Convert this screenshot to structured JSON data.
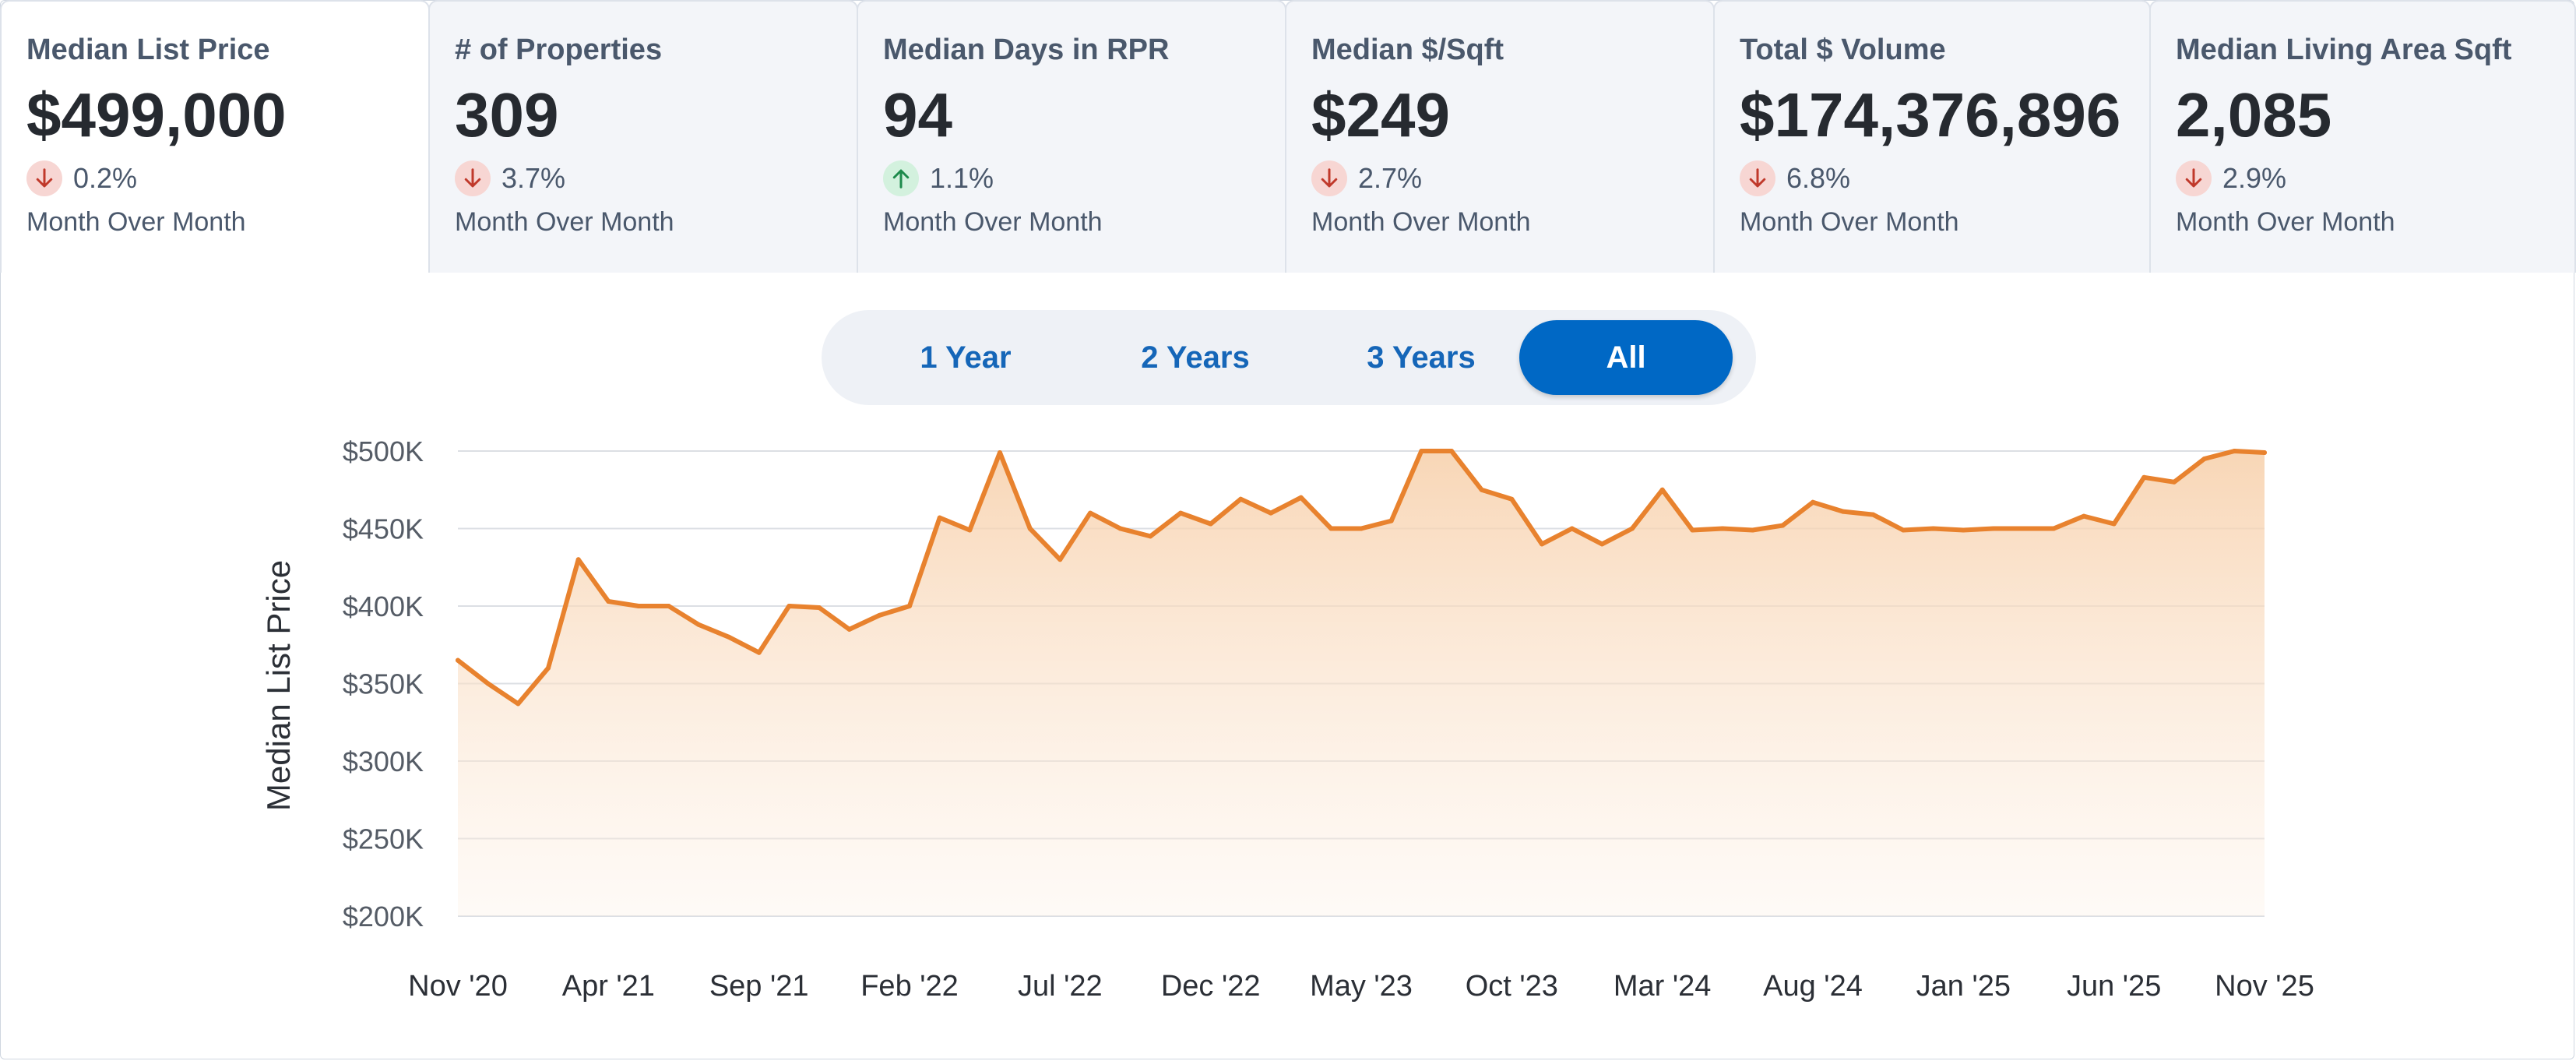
{
  "metrics": [
    {
      "title": "Median List Price",
      "value": "$499,000",
      "direction": "down",
      "change": "0.2%",
      "period": "Month Over Month",
      "active": true
    },
    {
      "title": "# of Properties",
      "value": "309",
      "direction": "down",
      "change": "3.7%",
      "period": "Month Over Month",
      "active": false
    },
    {
      "title": "Median Days in RPR",
      "value": "94",
      "direction": "up",
      "change": "1.1%",
      "period": "Month Over Month",
      "active": false
    },
    {
      "title": "Median $/Sqft",
      "value": "$249",
      "direction": "down",
      "change": "2.7%",
      "period": "Month Over Month",
      "active": false
    },
    {
      "title": "Total $ Volume",
      "value": "$174,376,896",
      "direction": "down",
      "change": "6.8%",
      "period": "Month Over Month",
      "active": false
    },
    {
      "title": "Median Living Area Sqft",
      "value": "2,085",
      "direction": "down",
      "change": "2.9%",
      "period": "Month Over Month",
      "active": false
    }
  ],
  "range_selector": {
    "options": [
      "1 Year",
      "2 Years",
      "3 Years",
      "All"
    ],
    "selected": "All"
  },
  "colors": {
    "line": "#e8822e",
    "fill": "#f8d2b0",
    "accent": "#0068c5",
    "down_arrow": "#c0392b",
    "up_arrow": "#1e8a4c"
  },
  "chart_data": {
    "type": "area",
    "title": "",
    "ylabel": "Median List Price",
    "xlabel": "",
    "ylim": [
      200000,
      500000
    ],
    "y_ticks": [
      200000,
      250000,
      300000,
      350000,
      400000,
      450000,
      500000
    ],
    "y_tick_labels": [
      "$200K",
      "$250K",
      "$300K",
      "$350K",
      "$400K",
      "$450K",
      "$500K"
    ],
    "x_tick_labels": [
      "Nov '20",
      "Apr '21",
      "Sep '21",
      "Feb '22",
      "Jul '22",
      "Dec '22",
      "May '23",
      "Oct '23",
      "Mar '24",
      "Aug '24",
      "Jan '25",
      "Jun '25",
      "Nov '25"
    ],
    "x_tick_every": 5,
    "grid": true,
    "series": [
      {
        "name": "Median List Price",
        "values": [
          365000,
          350000,
          337000,
          360000,
          430000,
          403000,
          400000,
          400000,
          388000,
          380000,
          370000,
          400000,
          399000,
          385000,
          394000,
          400000,
          457000,
          449000,
          499000,
          450000,
          430000,
          460000,
          450000,
          445000,
          460000,
          453000,
          469000,
          460000,
          470000,
          450000,
          450000,
          455000,
          500000,
          500000,
          475000,
          469000,
          440000,
          450000,
          440000,
          450000,
          475000,
          449000,
          450000,
          449000,
          452000,
          467000,
          461000,
          459000,
          449000,
          450000,
          449000,
          450000,
          450000,
          450000,
          458000,
          453000,
          483000,
          480000,
          495000,
          500000,
          499000
        ]
      }
    ]
  }
}
